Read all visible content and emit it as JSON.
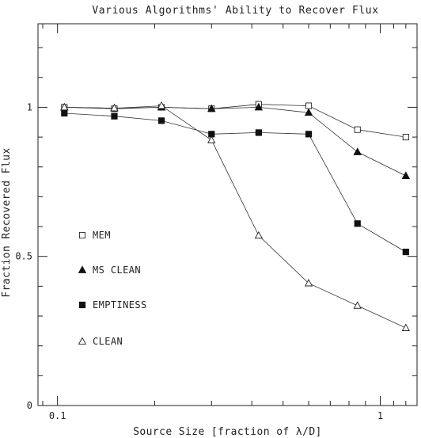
{
  "chart_data": {
    "type": "line",
    "title": "Various Algorithms' Ability to Recover Flux",
    "xlabel": "Source Size [fraction of λ/D]",
    "ylabel": "Fraction Recovered Flux",
    "xscale": "log",
    "xlim": [
      0.087,
      1.3
    ],
    "ylim": [
      0,
      1.28
    ],
    "xticks": [
      {
        "value": 0.1,
        "label": "0.1"
      },
      {
        "value": 1,
        "label": "1"
      }
    ],
    "yticks": [
      {
        "value": 0,
        "label": "0"
      },
      {
        "value": 0.5,
        "label": "0.5"
      },
      {
        "value": 1,
        "label": "1"
      }
    ],
    "legend_position": "left-center",
    "x": [
      0.105,
      0.15,
      0.21,
      0.3,
      0.42,
      0.6,
      0.85,
      1.2
    ],
    "series": [
      {
        "name": "MEM",
        "marker": "open-square",
        "values": [
          1.0,
          0.995,
          1.0,
          0.995,
          1.01,
          1.005,
          0.925,
          0.9
        ]
      },
      {
        "name": "MS CLEAN",
        "marker": "filled-triangle",
        "values": [
          1.0,
          0.997,
          1.0,
          0.995,
          1.0,
          0.982,
          0.85,
          0.77
        ]
      },
      {
        "name": "EMPTINESS",
        "marker": "filled-square",
        "values": [
          0.98,
          0.97,
          0.955,
          0.91,
          0.915,
          0.91,
          0.61,
          0.515
        ]
      },
      {
        "name": "CLEAN",
        "marker": "open-triangle",
        "values": [
          1.0,
          0.997,
          1.005,
          0.89,
          0.57,
          0.41,
          0.335,
          0.26
        ]
      }
    ]
  }
}
